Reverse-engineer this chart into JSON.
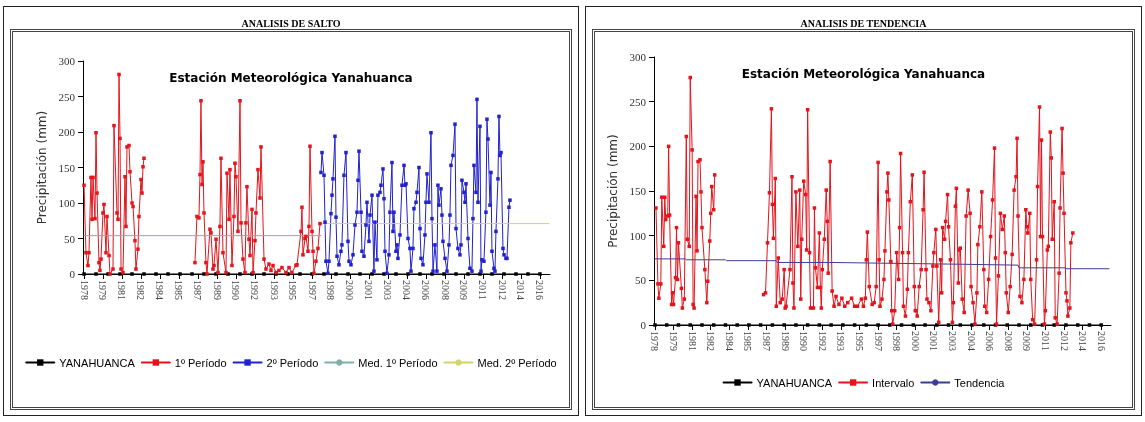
{
  "chart_data": [
    {
      "type": "line",
      "title": "ANALISIS DE SALTO",
      "subtitle": "Estación Meteorológica Yanahuanca",
      "ylabel": "Precipitación (mm)",
      "legend": "bottom",
      "xlim": [
        "1977-12",
        "2016-11"
      ],
      "xticks": [
        {
          "value": "1978-01",
          "label": "1978"
        },
        {
          "value": "1979-08",
          "label": "1979"
        },
        {
          "value": "1981-03",
          "label": "1981"
        },
        {
          "value": "1982-10",
          "label": "1982"
        },
        {
          "value": "1984-05",
          "label": "1984"
        },
        {
          "value": "1985-12",
          "label": "1985"
        },
        {
          "value": "1987-07",
          "label": "1987"
        },
        {
          "value": "1989-02",
          "label": "1989"
        },
        {
          "value": "1990-09",
          "label": "1990"
        },
        {
          "value": "1992-04",
          "label": "1992"
        },
        {
          "value": "1993-11",
          "label": "1993"
        },
        {
          "value": "1995-06",
          "label": "1995"
        },
        {
          "value": "1997-01",
          "label": "1997"
        },
        {
          "value": "1998-08",
          "label": "1998"
        },
        {
          "value": "2000-03",
          "label": "2000"
        },
        {
          "value": "2001-10",
          "label": "2001"
        },
        {
          "value": "2003-05",
          "label": "2003"
        },
        {
          "value": "2004-12",
          "label": "2004"
        },
        {
          "value": "2006-07",
          "label": "2006"
        },
        {
          "value": "2008-02",
          "label": "2008"
        },
        {
          "value": "2009-09",
          "label": "2009"
        },
        {
          "value": "2011-04",
          "label": "2011"
        },
        {
          "value": "2012-11",
          "label": "2012"
        },
        {
          "value": "2014-06",
          "label": "2014"
        },
        {
          "value": "2016-01",
          "label": "2016"
        }
      ],
      "ylim": [
        0,
        300
      ],
      "yticks": [
        0,
        50,
        100,
        150,
        200,
        250,
        300
      ],
      "series": [
        {
          "name": "YANAHUANCA",
          "color": "#000000",
          "marker": "square",
          "x": [
            "1978-01",
            "1979-01",
            "1980-01",
            "1981-01",
            "1982-01",
            "1983-01",
            "1984-01",
            "1985-01",
            "1986-01",
            "1987-01",
            "1988-01",
            "1989-01",
            "1990-01",
            "1991-01",
            "1992-01",
            "1993-01",
            "1994-01",
            "1995-01",
            "1996-01",
            "1997-01",
            "1998-01",
            "1999-01",
            "2000-01",
            "2001-01",
            "2002-01",
            "2003-01",
            "2004-01",
            "2005-01",
            "2006-01",
            "2007-01",
            "2008-01",
            "2009-01",
            "2010-01",
            "2011-01",
            "2012-01",
            "2013-01",
            "2014-01",
            "2015-01",
            "2016-01"
          ],
          "values": [
            0,
            0,
            0,
            0,
            0,
            0,
            0,
            0,
            0,
            0,
            0,
            0,
            0,
            0,
            0,
            0,
            0,
            0,
            0,
            0,
            0,
            0,
            0,
            0,
            0,
            0,
            0,
            0,
            0,
            0,
            0,
            0,
            0,
            0,
            0,
            0,
            0,
            0,
            0
          ]
        },
        {
          "name": "1º Período",
          "color": "#e3141c",
          "marker": "square",
          "x": [
            "1978-01",
            "1978-03",
            "1978-05",
            "1978-06",
            "1978-08",
            "1978-09",
            "1978-10",
            "1978-12",
            "1979-01",
            "1979-02",
            "1979-04",
            "1979-05",
            "1979-06",
            "1979-08",
            "1979-09",
            "1979-11",
            "1979-12",
            "1980-02",
            "1980-03",
            "1980-06",
            "1980-07",
            "1980-10",
            "1980-11",
            "1980-12",
            "1981-01",
            "1981-02",
            "1981-04",
            "1981-06",
            "1981-07",
            "1981-08",
            "1981-10",
            "1981-11",
            "1982-01",
            "1982-02",
            "1982-04",
            "1982-05",
            "1982-07",
            "1982-08",
            "1982-10",
            "1982-11",
            "1982-12",
            "1983-01",
            "1985-01",
            "1987-04",
            "1987-06",
            "1987-08",
            "1987-09",
            "1987-10",
            "1987-11",
            "1987-12",
            "1988-01",
            "1988-03",
            "1988-04",
            "1988-07",
            "1988-08",
            "1988-10",
            "1988-11",
            "1989-01",
            "1989-03",
            "1989-05",
            "1989-06",
            "1989-08",
            "1989-11",
            "1989-12",
            "1990-02",
            "1990-03",
            "1990-05",
            "1990-07",
            "1990-08",
            "1990-09",
            "1990-11",
            "1991-01",
            "1991-02",
            "1991-04",
            "1991-06",
            "1991-07",
            "1991-08",
            "1991-10",
            "1991-11",
            "1992-01",
            "1992-02",
            "1992-04",
            "1992-05",
            "1992-07",
            "1992-09",
            "1992-10",
            "1993-01",
            "1993-03",
            "1993-06",
            "1993-08",
            "1993-10",
            "1994-01",
            "1994-04",
            "1994-07",
            "1994-11",
            "1995-02",
            "1995-05",
            "1995-09",
            "1995-10",
            "1996-02",
            "1996-03",
            "1996-04",
            "1996-06",
            "1996-07",
            "1996-09",
            "1996-10",
            "1996-11",
            "1997-01",
            "1997-02",
            "1997-03",
            "1997-05",
            "1997-07",
            "1997-09"
          ],
          "values": [
            125,
            30,
            12,
            30,
            136,
            77,
            136,
            78,
            199,
            114,
            16,
            5,
            21,
            86,
            98,
            30,
            81,
            26,
            0,
            7,
            209,
            86,
            77,
            281,
            191,
            7,
            2,
            137,
            67,
            179,
            181,
            144,
            100,
            95,
            47,
            7,
            35,
            81,
            133,
            114,
            151,
            163,
            null,
            16,
            81,
            79,
            140,
            244,
            126,
            158,
            86,
            16,
            0,
            63,
            58,
            7,
            12,
            49,
            2,
            67,
            163,
            30,
            2,
            142,
            77,
            147,
            12,
            81,
            156,
            137,
            60,
            244,
            72,
            21,
            2,
            72,
            123,
            49,
            26,
            91,
            2,
            47,
            86,
            147,
            107,
            179,
            21,
            7,
            14,
            5,
            12,
            2,
            5,
            9,
            2,
            9,
            2,
            12,
            13,
            60,
            94,
            27,
            50,
            53,
            32,
            67,
            180,
            60,
            32,
            1,
            18,
            36,
            71
          ]
        },
        {
          "name": "2º Período",
          "color": "#2222cc",
          "marker": "square",
          "x": [
            "1997-10",
            "1997-11",
            "1998-01",
            "1998-02",
            "1998-03",
            "1998-05",
            "1998-06",
            "1998-08",
            "1998-09",
            "1998-10",
            "1998-12",
            "1999-01",
            "1999-02",
            "1999-04",
            "1999-06",
            "1999-07",
            "1999-09",
            "1999-11",
            "2000-01",
            "2000-02",
            "2000-04",
            "2000-06",
            "2000-08",
            "2000-10",
            "2000-11",
            "2000-12",
            "2001-02",
            "2001-03",
            "2001-05",
            "2001-07",
            "2001-08",
            "2001-10",
            "2001-11",
            "2002-01",
            "2002-03",
            "2002-04",
            "2002-06",
            "2002-07",
            "2002-09",
            "2002-10",
            "2002-12",
            "2003-01",
            "2003-02",
            "2003-04",
            "2003-06",
            "2003-07",
            "2003-09",
            "2003-10",
            "2003-11",
            "2004-01",
            "2004-02",
            "2004-03",
            "2004-05",
            "2004-07",
            "2004-09",
            "2004-10",
            "2004-11",
            "2005-01",
            "2005-03",
            "2005-04",
            "2005-06",
            "2005-07",
            "2005-09",
            "2005-10",
            "2005-12",
            "2006-01",
            "2006-02",
            "2006-04",
            "2006-06",
            "2006-07",
            "2006-08",
            "2006-10",
            "2006-12",
            "2007-01",
            "2007-02",
            "2007-04",
            "2007-06",
            "2007-07",
            "2007-08",
            "2007-10",
            "2007-11",
            "2007-12",
            "2008-02",
            "2008-04",
            "2008-06",
            "2008-07",
            "2008-08",
            "2008-10",
            "2008-12",
            "2009-01",
            "2009-03",
            "2009-05",
            "2009-06",
            "2009-07",
            "2009-09",
            "2009-10",
            "2009-11",
            "2010-01",
            "2010-03",
            "2010-05",
            "2010-06",
            "2010-07",
            "2010-09",
            "2010-10",
            "2010-11",
            "2011-01",
            "2011-02",
            "2011-03",
            "2011-05",
            "2011-07",
            "2011-08",
            "2011-09",
            "2011-11",
            "2011-12",
            "2012-01",
            "2012-03",
            "2012-04",
            "2012-05",
            "2012-07",
            "2012-08",
            "2012-09",
            "2012-10",
            "2012-12",
            "2013-01",
            "2013-03",
            "2013-04",
            "2013-06",
            "2013-07"
          ],
          "values": [
            143,
            171,
            139,
            73,
            18,
            1,
            18,
            85,
            111,
            134,
            194,
            80,
            25,
            13,
            32,
            41,
            139,
            171,
            46,
            18,
            13,
            27,
            69,
            87,
            132,
            173,
            87,
            32,
            25,
            69,
            101,
            46,
            83,
            111,
            4,
            73,
            20,
            111,
            115,
            125,
            148,
            106,
            32,
            1,
            27,
            87,
            157,
            60,
            87,
            32,
            41,
            22,
            55,
            125,
            153,
            125,
            127,
            50,
            36,
            4,
            36,
            92,
            101,
            115,
            150,
            64,
            22,
            13,
            55,
            101,
            141,
            101,
            199,
            78,
            4,
            41,
            4,
            125,
            97,
            120,
            83,
            46,
            22,
            4,
            41,
            83,
            153,
            167,
            211,
            64,
            36,
            27,
            41,
            132,
            115,
            101,
            127,
            50,
            8,
            4,
            78,
            153,
            115,
            246,
            101,
            208,
            4,
            20,
            18,
            87,
            218,
            190,
            97,
            143,
            32,
            8,
            4,
            60,
            134,
            222,
            167,
            171,
            36,
            27,
            22,
            22,
            94,
            104
          ]
        },
        {
          "name": "Med. 1º Período",
          "color": "#7fb0a8",
          "marker": "none",
          "x": [
            "1978-01",
            "1997-10"
          ],
          "values": [
            54,
            54
          ]
        },
        {
          "name": "Med. 2º Período",
          "color": "#d4d46a",
          "marker": "none",
          "x": [
            "1997-10",
            "2016-10"
          ],
          "values": [
            71,
            71
          ]
        }
      ]
    },
    {
      "type": "line",
      "title": "ANALISIS DE TENDENCIA",
      "subtitle": "Estación Meteorológica Yanahuanca",
      "ylabel": "Precipitación (mm)",
      "legend": "bottom",
      "xlim": [
        "1977-12",
        "2016-11"
      ],
      "xticks": [
        {
          "value": "1978-01",
          "label": "1978"
        },
        {
          "value": "1979-08",
          "label": "1979"
        },
        {
          "value": "1981-03",
          "label": "1981"
        },
        {
          "value": "1982-10",
          "label": "1982"
        },
        {
          "value": "1984-05",
          "label": "1984"
        },
        {
          "value": "1985-12",
          "label": "1985"
        },
        {
          "value": "1987-07",
          "label": "1987"
        },
        {
          "value": "1989-02",
          "label": "1989"
        },
        {
          "value": "1990-09",
          "label": "1990"
        },
        {
          "value": "1992-04",
          "label": "1992"
        },
        {
          "value": "1993-11",
          "label": "1993"
        },
        {
          "value": "1995-06",
          "label": "1995"
        },
        {
          "value": "1997-01",
          "label": "1997"
        },
        {
          "value": "1998-08",
          "label": "1998"
        },
        {
          "value": "2000-03",
          "label": "2000"
        },
        {
          "value": "2001-10",
          "label": "2001"
        },
        {
          "value": "2003-05",
          "label": "2003"
        },
        {
          "value": "2004-12",
          "label": "2004"
        },
        {
          "value": "2006-07",
          "label": "2006"
        },
        {
          "value": "2008-02",
          "label": "2008"
        },
        {
          "value": "2009-09",
          "label": "2009"
        },
        {
          "value": "2011-04",
          "label": "2011"
        },
        {
          "value": "2012-11",
          "label": "2012"
        },
        {
          "value": "2014-06",
          "label": "2014"
        },
        {
          "value": "2016-01",
          "label": "2016"
        }
      ],
      "ylim": [
        0,
        300
      ],
      "yticks": [
        0,
        50,
        100,
        150,
        200,
        250,
        300
      ],
      "series": [
        {
          "name": "YANAHUANCA",
          "color": "#000000",
          "marker": "square",
          "x": [
            "1978-01",
            "1979-01",
            "1980-01",
            "1981-01",
            "1982-01",
            "1983-01",
            "1984-01",
            "1985-01",
            "1986-01",
            "1987-01",
            "1988-01",
            "1989-01",
            "1990-01",
            "1991-01",
            "1992-01",
            "1993-01",
            "1994-01",
            "1995-01",
            "1996-01",
            "1997-01",
            "1998-01",
            "1999-01",
            "2000-01",
            "2001-01",
            "2002-01",
            "2003-01",
            "2004-01",
            "2005-01",
            "2006-01",
            "2007-01",
            "2008-01",
            "2009-01",
            "2010-01",
            "2011-01",
            "2012-01",
            "2013-01",
            "2014-01",
            "2015-01",
            "2016-01"
          ],
          "values": [
            0,
            0,
            0,
            0,
            0,
            0,
            0,
            0,
            0,
            0,
            0,
            0,
            0,
            0,
            0,
            0,
            0,
            0,
            0,
            0,
            0,
            0,
            0,
            0,
            0,
            0,
            0,
            0,
            0,
            0,
            0,
            0,
            0,
            0,
            0,
            0,
            0,
            0,
            0
          ]
        },
        {
          "name": "Intervalo",
          "color": "#e3141c",
          "marker": "square",
          "x": [
            "1978-02",
            "1978-04",
            "1978-05",
            "1978-07",
            "1978-08",
            "1978-10",
            "1978-11",
            "1978-12",
            "1979-02",
            "1979-03",
            "1979-04",
            "1979-06",
            "1979-07",
            "1979-08",
            "1979-10",
            "1979-11",
            "1979-12",
            "1980-01",
            "1980-04",
            "1980-05",
            "1980-07",
            "1980-09",
            "1980-10",
            "1980-12",
            "1981-01",
            "1981-03",
            "1981-04",
            "1981-05",
            "1981-07",
            "1981-08",
            "1981-09",
            "1981-11",
            "1981-12",
            "1982-01",
            "1982-04",
            "1982-06",
            "1982-07",
            "1982-09",
            "1982-10",
            "1982-11",
            "1983-01",
            "1983-02",
            "1985-01",
            "1987-04",
            "1987-06",
            "1987-08",
            "1987-10",
            "1987-12",
            "1988-01",
            "1988-02",
            "1988-04",
            "1988-05",
            "1988-07",
            "1988-09",
            "1988-11",
            "1989-01",
            "1989-02",
            "1989-03",
            "1989-07",
            "1989-09",
            "1989-10",
            "1989-11",
            "1990-01",
            "1990-03",
            "1990-05",
            "1990-06",
            "1990-07",
            "1990-09",
            "1990-11",
            "1990-12",
            "1991-01",
            "1991-03",
            "1991-04",
            "1991-07",
            "1991-08",
            "1991-09",
            "1991-11",
            "1992-01",
            "1992-02",
            "1992-03",
            "1992-04",
            "1992-06",
            "1992-08",
            "1992-09",
            "1992-10",
            "1992-12",
            "1993-02",
            "1993-04",
            "1993-06",
            "1993-09",
            "1993-12",
            "1994-03",
            "1994-06",
            "1994-10",
            "1995-01",
            "1995-04",
            "1995-08",
            "1995-10",
            "1995-12",
            "1996-01",
            "1996-02",
            "1996-04",
            "1996-07",
            "1996-09",
            "1996-11",
            "1997-01",
            "1997-02",
            "1997-03",
            "1997-05",
            "1997-07",
            "1997-08",
            "1997-10",
            "1997-11",
            "1997-12",
            "1998-02",
            "1998-03",
            "1998-04",
            "1998-06",
            "1998-08",
            "1998-10",
            "1998-11",
            "1998-12",
            "1999-02",
            "1999-03",
            "1999-05",
            "1999-07",
            "1999-08",
            "1999-10",
            "1999-12",
            "2000-02",
            "2000-03",
            "2000-05",
            "2000-07",
            "2000-09",
            "2000-11",
            "2000-12",
            "2001-02",
            "2001-03",
            "2001-05",
            "2001-07",
            "2001-09",
            "2001-10",
            "2001-12",
            "2002-01",
            "2002-03",
            "2002-05",
            "2002-06",
            "2002-07",
            "2002-09",
            "2002-10",
            "2002-12",
            "2003-01",
            "2003-03",
            "2003-05",
            "2003-06",
            "2003-08",
            "2003-09",
            "2003-11",
            "2003-12",
            "2004-01",
            "2004-03",
            "2004-05",
            "2004-07",
            "2004-09",
            "2004-11",
            "2004-12",
            "2005-02",
            "2005-04",
            "2005-06",
            "2005-07",
            "2005-09",
            "2005-11",
            "2006-01",
            "2006-02",
            "2006-04",
            "2006-06",
            "2006-08",
            "2006-10",
            "2006-12",
            "2007-01",
            "2007-02",
            "2007-04",
            "2007-06",
            "2007-08",
            "2007-10",
            "2007-11",
            "2007-12",
            "2008-02",
            "2008-04",
            "2008-06",
            "2008-08",
            "2008-10",
            "2008-11",
            "2008-12",
            "2009-02",
            "2009-04",
            "2009-06",
            "2009-08",
            "2009-09",
            "2009-10",
            "2009-12",
            "2010-01",
            "2010-03",
            "2010-05",
            "2010-07",
            "2010-08",
            "2010-10",
            "2010-11",
            "2010-12",
            "2011-01",
            "2011-03",
            "2011-04",
            "2011-06",
            "2011-07",
            "2011-09",
            "2011-10",
            "2011-11",
            "2012-01",
            "2012-02",
            "2012-04",
            "2012-06",
            "2012-07",
            "2012-09",
            "2012-10",
            "2012-11",
            "2013-01",
            "2013-02",
            "2013-03",
            "2013-05",
            "2013-06",
            "2013-08"
          ],
          "values": [
            131,
            46,
            30,
            46,
            143,
            88,
            143,
            118,
            122,
            200,
            123,
            23,
            36,
            23,
            53,
            109,
            51,
            92,
            41,
            19,
            29,
            211,
            96,
            88,
            277,
            196,
            23,
            19,
            144,
            83,
            183,
            185,
            149,
            109,
            62,
            25,
            49,
            94,
            125,
            155,
            129,
            168,
            null,
            34,
            36,
            92,
            148,
            242,
            135,
            97,
            164,
            21,
            75,
            25,
            29,
            62,
            19,
            21,
            62,
            166,
            47,
            19,
            149,
            88,
            151,
            29,
            96,
            161,
            146,
            84,
            241,
            81,
            19,
            19,
            131,
            64,
            42,
            103,
            42,
            19,
            62,
            96,
            151,
            116,
            58,
            183,
            38,
            21,
            32,
            23,
            30,
            21,
            25,
            30,
            21,
            21,
            29,
            21,
            30,
            73,
            104,
            43,
            23,
            25,
            43,
            182,
            73,
            21,
            29,
            51,
            83,
            149,
            170,
            140,
            71,
            16,
            1,
            16,
            81,
            51,
            109,
            192,
            81,
            21,
            10,
            40,
            81,
            138,
            168,
            43,
            16,
            10,
            43,
            62,
            129,
            171,
            62,
            29,
            25,
            16,
            66,
            81,
            107,
            66,
            3,
            73,
            36,
            109,
            96,
            116,
            146,
            110,
            73,
            3,
            25,
            133,
            153,
            47,
            84,
            86,
            29,
            14,
            122,
            151,
            125,
            43,
            25,
            1,
            36,
            90,
            110,
            149,
            62,
            21,
            14,
            51,
            99,
            140,
            198,
            75,
            1,
            55,
            125,
            107,
            122,
            81,
            36,
            14,
            43,
            79,
            151,
            166,
            209,
            122,
            32,
            25,
            51,
            129,
            110,
            103,
            125,
            51,
            6,
            1,
            73,
            155,
            244,
            99,
            207,
            99,
            1,
            16,
            84,
            88,
            216,
            187,
            96,
            138,
            8,
            1,
            58,
            131,
            220,
            170,
            125,
            36,
            27,
            10,
            19,
            92,
            103
          ]
        },
        {
          "name": "Tendencia",
          "color": "#3c3c96",
          "marker": "none",
          "x": [
            "1978-01",
            "1980-08",
            "1980-09",
            "1984-01",
            "1984-02",
            "1988-05",
            "1988-06",
            "1992-11",
            "2004-03",
            "2008-12",
            "2009-01",
            "2012-12",
            "2013-01",
            "2016-09"
          ],
          "values": [
            74,
            74,
            73,
            73,
            72,
            72,
            70,
            70,
            68,
            67,
            64,
            64,
            63,
            63
          ]
        }
      ]
    }
  ]
}
